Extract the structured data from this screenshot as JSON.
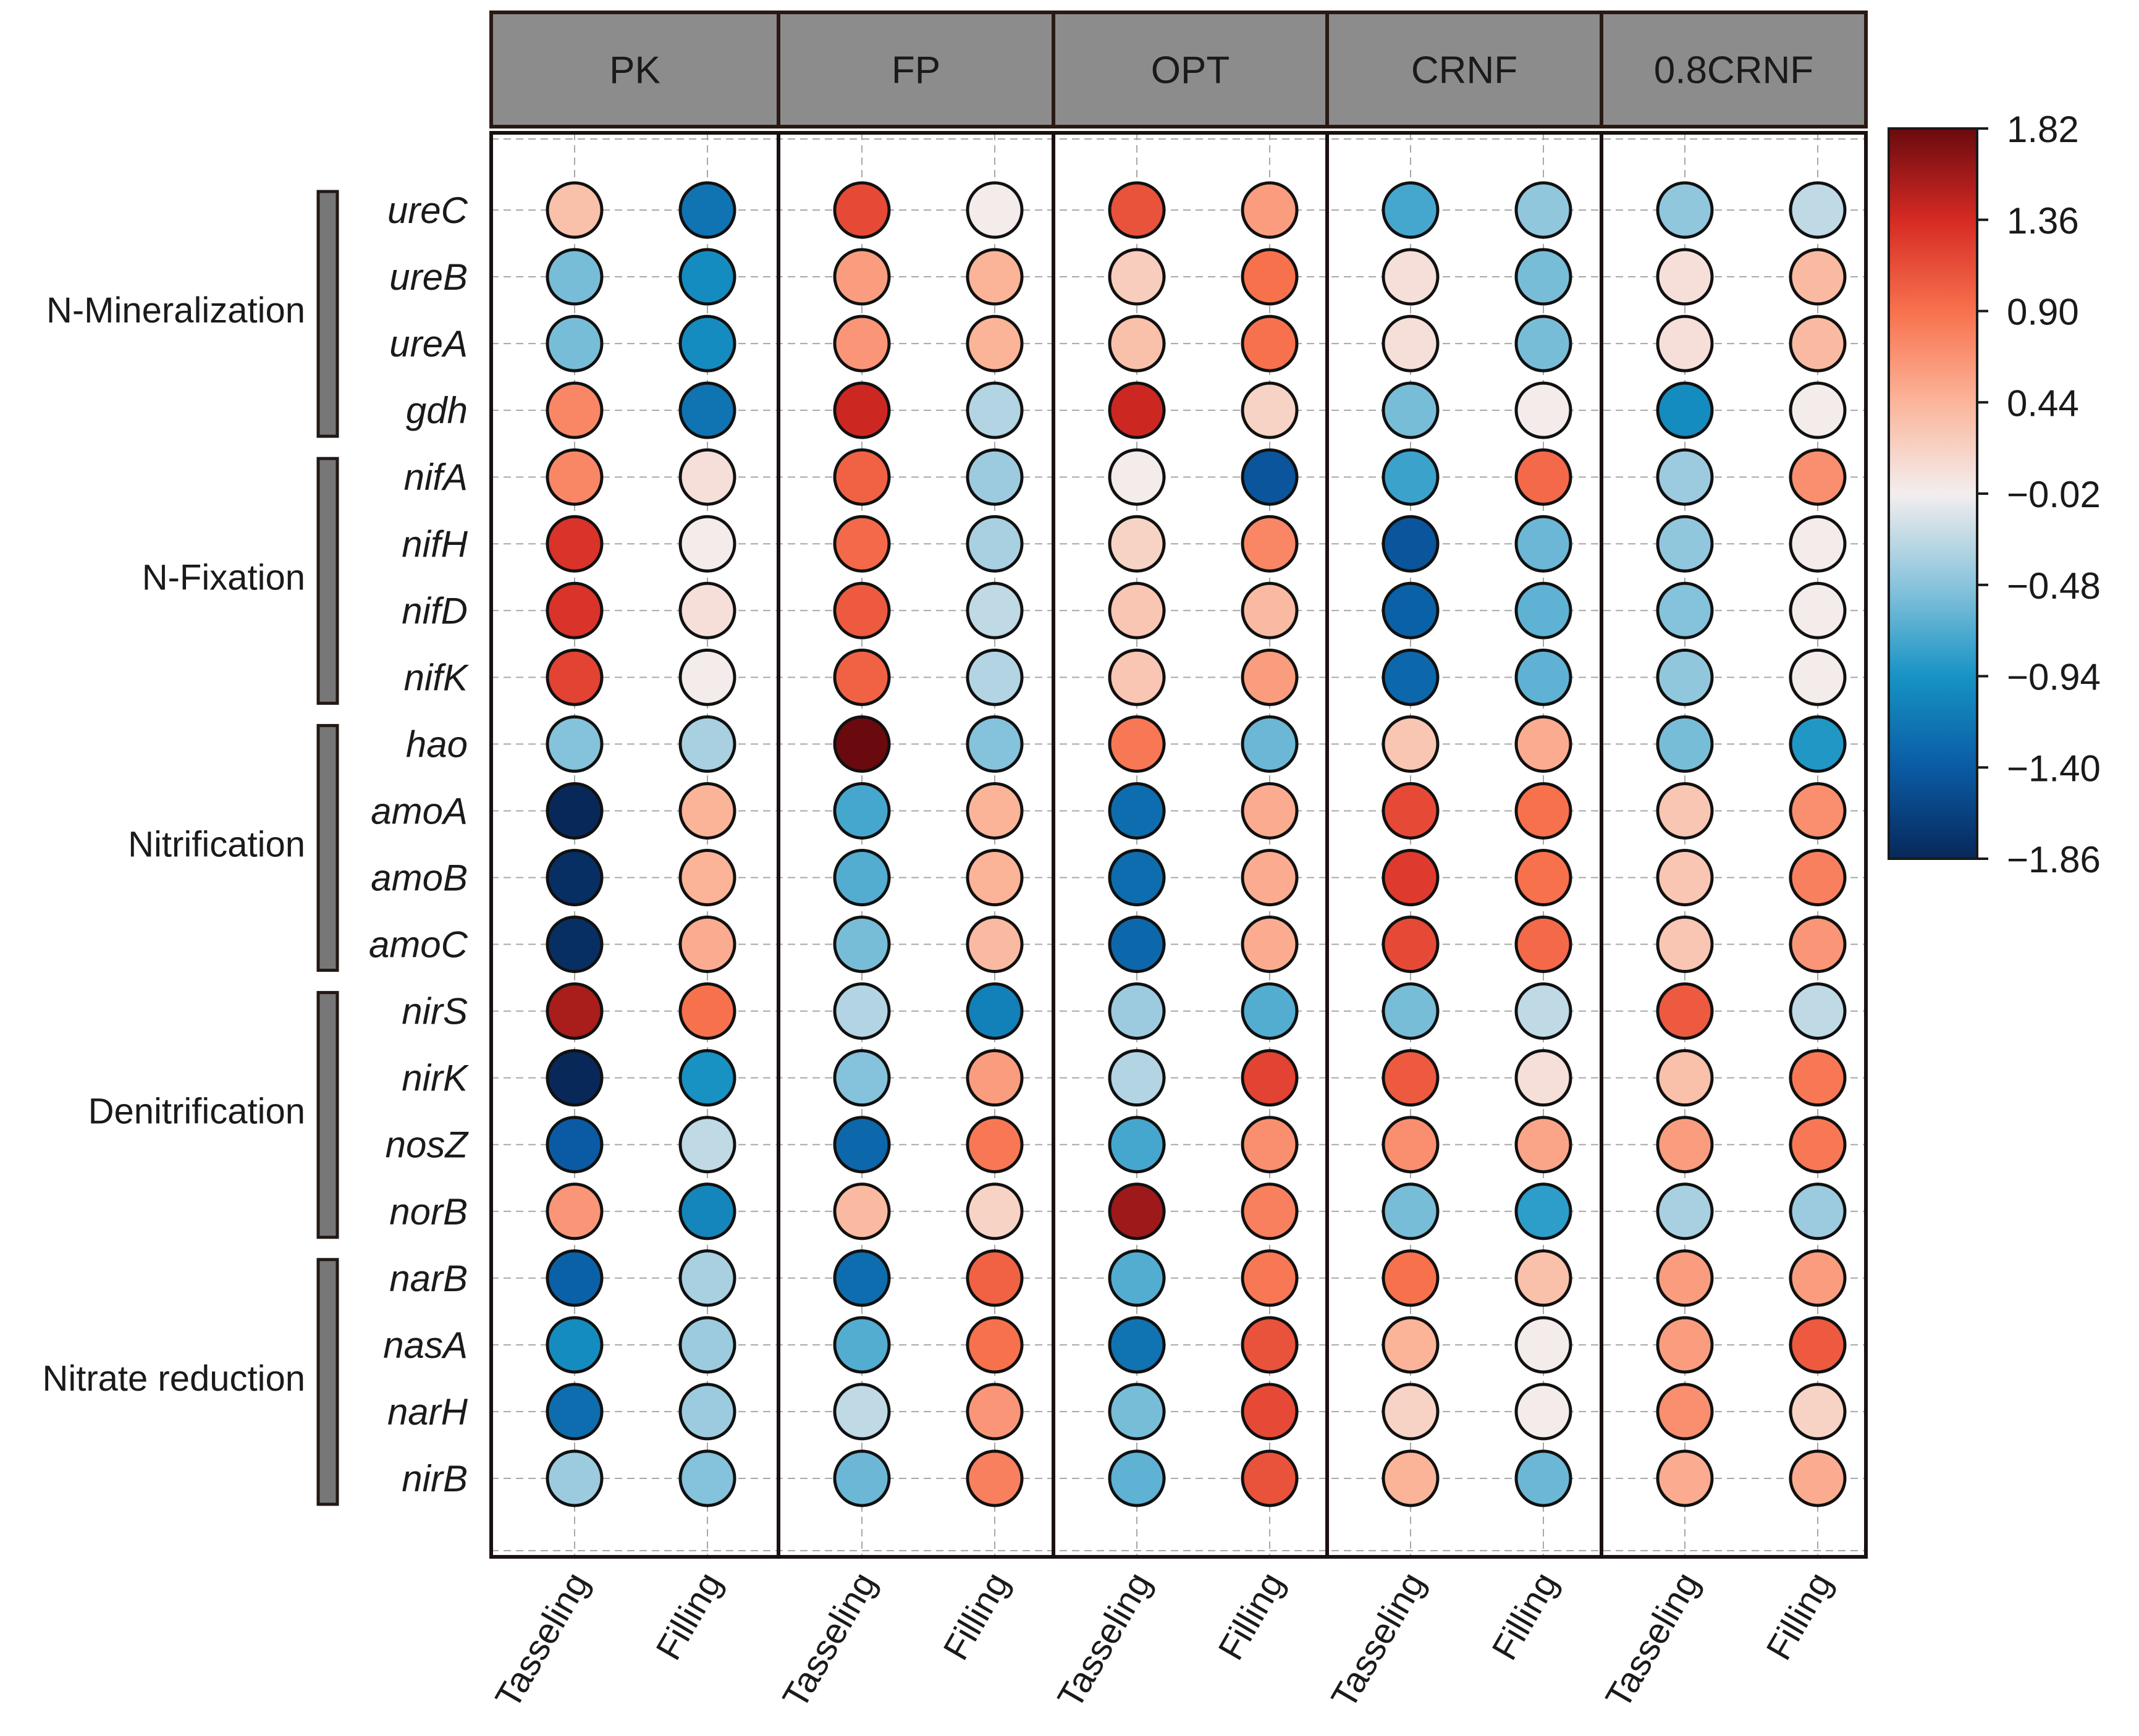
{
  "chart_data": {
    "type": "heatmap",
    "subtype": "dot-matrix",
    "title": "",
    "panels": [
      "PK",
      "FP",
      "OPT",
      "CRNF",
      "0.8CRNF"
    ],
    "stages": [
      "Tasseling",
      "Filling"
    ],
    "genes": [
      "ureC",
      "ureB",
      "ureA",
      "gdh",
      "nifA",
      "nifH",
      "nifD",
      "nifK",
      "hao",
      "amoA",
      "amoB",
      "amoC",
      "nirS",
      "nirK",
      "nosZ",
      "norB",
      "narB",
      "nasA",
      "narH",
      "nirB"
    ],
    "groups": [
      {
        "name": "N-Mineralization",
        "genes": [
          "ureC",
          "ureB",
          "ureA",
          "gdh"
        ]
      },
      {
        "name": "N-Fixation",
        "genes": [
          "nifA",
          "nifH",
          "nifD",
          "nifK"
        ]
      },
      {
        "name": "Nitrification",
        "genes": [
          "hao",
          "amoA",
          "amoB",
          "amoC"
        ]
      },
      {
        "name": "Denitrification",
        "genes": [
          "nirS",
          "nirK",
          "nosZ",
          "norB"
        ]
      },
      {
        "name": "Nitrate reduction",
        "genes": [
          "narB",
          "nasA",
          "narH",
          "nirB"
        ]
      }
    ],
    "columns": [
      "PK Tasseling",
      "PK Filling",
      "FP Tasseling",
      "FP Filling",
      "OPT Tasseling",
      "OPT Filling",
      "CRNF Tasseling",
      "CRNF Filling",
      "0.8CRNF Tasseling",
      "0.8CRNF Filling"
    ],
    "values": [
      [
        0.35,
        -1.2,
        1.15,
        0.0,
        1.1,
        0.6,
        -0.75,
        -0.45,
        -0.45,
        -0.25
      ],
      [
        -0.55,
        -1.0,
        0.6,
        0.45,
        0.25,
        0.9,
        0.1,
        -0.55,
        0.1,
        0.4
      ],
      [
        -0.55,
        -1.0,
        0.65,
        0.45,
        0.35,
        0.9,
        0.1,
        -0.55,
        0.1,
        0.4
      ],
      [
        0.75,
        -1.2,
        1.4,
        -0.3,
        1.4,
        0.2,
        -0.55,
        0.0,
        -1.0,
        0.0
      ],
      [
        0.75,
        0.1,
        1.0,
        -0.4,
        0.0,
        -1.45,
        -0.8,
        0.95,
        -0.4,
        0.7
      ],
      [
        1.3,
        0.0,
        0.95,
        -0.35,
        0.2,
        0.75,
        -1.45,
        -0.6,
        -0.45,
        0.0
      ],
      [
        1.3,
        0.1,
        1.05,
        -0.25,
        0.3,
        0.4,
        -1.35,
        -0.65,
        -0.5,
        0.0
      ],
      [
        1.2,
        0.0,
        1.0,
        -0.3,
        0.3,
        0.6,
        -1.3,
        -0.65,
        -0.45,
        0.0
      ],
      [
        -0.5,
        -0.35,
        1.82,
        -0.5,
        0.85,
        -0.6,
        0.3,
        0.5,
        -0.55,
        -0.9
      ],
      [
        -1.86,
        0.45,
        -0.75,
        0.45,
        -1.25,
        0.5,
        1.15,
        0.9,
        0.3,
        0.7
      ],
      [
        -1.8,
        0.45,
        -0.7,
        0.45,
        -1.25,
        0.5,
        1.25,
        0.9,
        0.3,
        0.8
      ],
      [
        -1.8,
        0.5,
        -0.55,
        0.4,
        -1.3,
        0.5,
        1.15,
        0.95,
        0.3,
        0.65
      ],
      [
        1.55,
        0.9,
        -0.3,
        -1.1,
        -0.4,
        -0.7,
        -0.55,
        -0.25,
        1.05,
        -0.25
      ],
      [
        -1.86,
        -0.95,
        -0.5,
        0.6,
        -0.3,
        1.2,
        1.05,
        0.1,
        0.35,
        0.85
      ],
      [
        -1.4,
        -0.25,
        -1.3,
        0.85,
        -0.75,
        0.7,
        0.7,
        0.55,
        0.6,
        0.85
      ],
      [
        0.65,
        -1.05,
        0.4,
        0.2,
        1.6,
        0.8,
        -0.55,
        -0.85,
        -0.35,
        -0.4
      ],
      [
        -1.35,
        -0.35,
        -1.25,
        1.0,
        -0.7,
        0.85,
        0.9,
        0.35,
        0.6,
        0.6
      ],
      [
        -1.0,
        -0.4,
        -0.7,
        0.9,
        -1.2,
        1.1,
        0.45,
        0.0,
        0.6,
        1.05
      ],
      [
        -1.25,
        -0.4,
        -0.25,
        0.65,
        -0.55,
        1.15,
        0.2,
        0.0,
        0.7,
        0.2
      ],
      [
        -0.4,
        -0.5,
        -0.6,
        0.8,
        -0.65,
        1.1,
        0.45,
        -0.6,
        0.5,
        0.5
      ]
    ],
    "colorbar": {
      "min": -1.86,
      "max": 1.82,
      "ticks": [
        "1.82",
        "1.36",
        "0.90",
        "0.44",
        "−0.02",
        "−0.48",
        "−0.94",
        "−1.40",
        "−1.86"
      ],
      "stops": [
        {
          "v": -1.86,
          "color": "#08285a"
        },
        {
          "v": -1.4,
          "color": "#0a5ba4"
        },
        {
          "v": -0.94,
          "color": "#1793c4"
        },
        {
          "v": -0.48,
          "color": "#8ac4dc"
        },
        {
          "v": -0.02,
          "color": "#f3eeee"
        },
        {
          "v": 0.44,
          "color": "#fbb59a"
        },
        {
          "v": 0.9,
          "color": "#f8714d"
        },
        {
          "v": 1.36,
          "color": "#d62a24"
        },
        {
          "v": 1.82,
          "color": "#6a0a0e"
        }
      ]
    },
    "grid": true,
    "legend": "right"
  }
}
